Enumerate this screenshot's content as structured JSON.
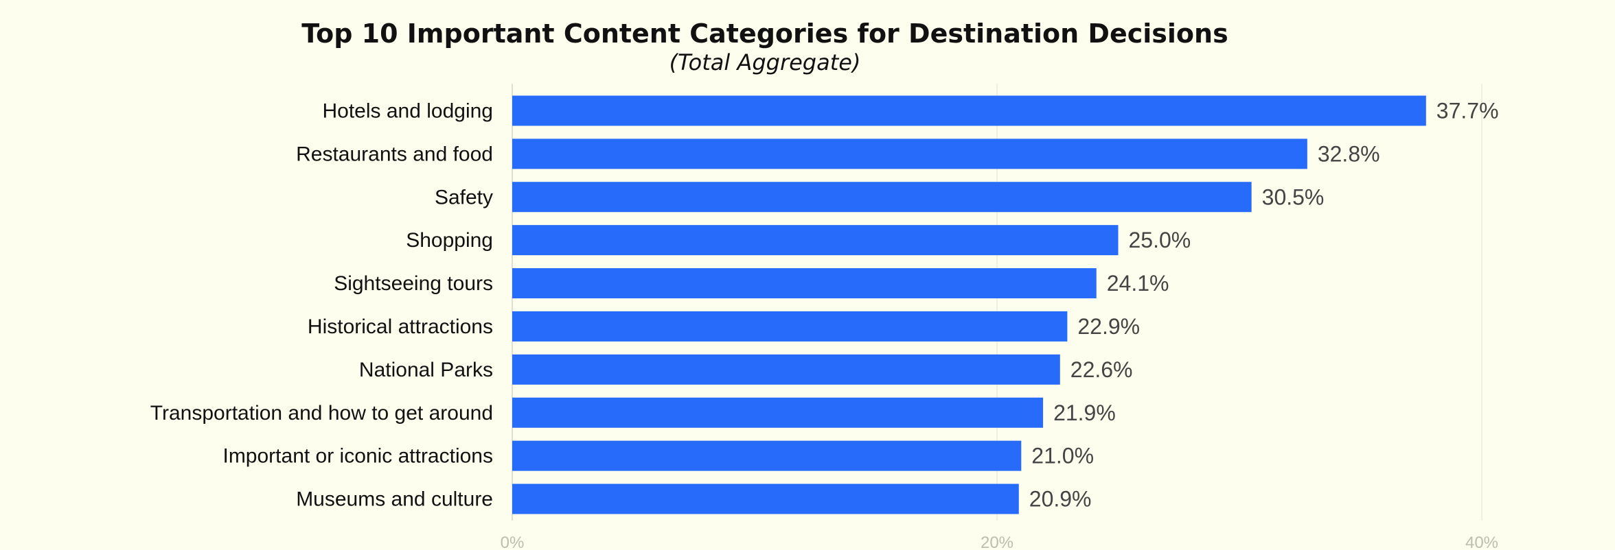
{
  "chart_data": {
    "type": "bar",
    "orientation": "horizontal",
    "title": "Top 10 Important Content Categories for Destination Decisions",
    "subtitle": "(Total Aggregate)",
    "categories": [
      "Hotels and lodging",
      "Restaurants and food",
      "Safety",
      "Shopping",
      "Sightseeing tours",
      "Historical attractions",
      "National Parks",
      "Transportation and how to get around",
      "Important or iconic attractions",
      "Museums and culture"
    ],
    "values": [
      37.7,
      32.8,
      30.5,
      25.0,
      24.1,
      22.9,
      22.6,
      21.9,
      21.0,
      20.9
    ],
    "value_labels": [
      "37.7%",
      "32.8%",
      "30.5%",
      "25.0%",
      "24.1%",
      "22.9%",
      "22.6%",
      "21.9%",
      "21.0%",
      "20.9%"
    ],
    "xlim": [
      0,
      40
    ],
    "xticks": [
      0,
      20,
      40
    ],
    "xtick_labels": [
      "0%",
      "20%",
      "40%"
    ],
    "xlabel": "",
    "ylabel": "",
    "grid": true,
    "bar_color": "#276bfa"
  }
}
